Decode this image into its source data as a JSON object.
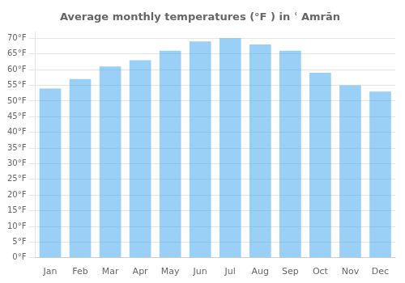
{
  "chart_data": {
    "type": "bar",
    "title": "Average monthly temperatures (°F ) in ʿ Amrān",
    "categories": [
      "Jan",
      "Feb",
      "Mar",
      "Apr",
      "May",
      "Jun",
      "Jul",
      "Aug",
      "Sep",
      "Oct",
      "Nov",
      "Dec"
    ],
    "values": [
      54,
      57,
      61,
      63,
      66,
      69,
      70,
      68,
      66,
      59,
      55,
      53
    ],
    "ylim": [
      0,
      72
    ],
    "yticks": [
      {
        "value": 0,
        "label": "0°F"
      },
      {
        "value": 5,
        "label": "5°F"
      },
      {
        "value": 10,
        "label": "10°F"
      },
      {
        "value": 15,
        "label": "15°F"
      },
      {
        "value": 20,
        "label": "20°F"
      },
      {
        "value": 25,
        "label": "25°F"
      },
      {
        "value": 30,
        "label": "30°F"
      },
      {
        "value": 35,
        "label": "35°F"
      },
      {
        "value": 40,
        "label": "40°F"
      },
      {
        "value": 45,
        "label": "45°F"
      },
      {
        "value": 50,
        "label": "50°F"
      },
      {
        "value": 55,
        "label": "55°F"
      },
      {
        "value": 60,
        "label": "60°F"
      },
      {
        "value": 65,
        "label": "65°F"
      },
      {
        "value": 70,
        "label": "70°F"
      }
    ],
    "grid": true
  }
}
